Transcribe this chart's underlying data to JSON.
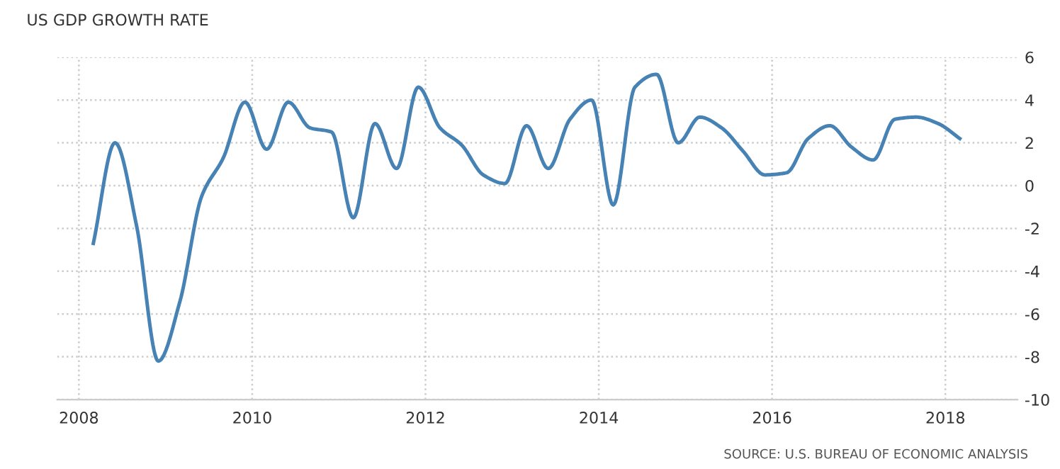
{
  "chart_data": {
    "type": "line",
    "title": "US GDP GROWTH RATE",
    "x": [
      "2008-03",
      "2008-06",
      "2008-09",
      "2008-12",
      "2009-03",
      "2009-06",
      "2009-09",
      "2009-12",
      "2010-03",
      "2010-06",
      "2010-09",
      "2010-12",
      "2011-03",
      "2011-06",
      "2011-09",
      "2011-12",
      "2012-03",
      "2012-06",
      "2012-09",
      "2012-12",
      "2013-03",
      "2013-06",
      "2013-09",
      "2013-12",
      "2014-03",
      "2014-06",
      "2014-09",
      "2014-12",
      "2015-03",
      "2015-06",
      "2015-09",
      "2015-12",
      "2016-03",
      "2016-06",
      "2016-09",
      "2016-12",
      "2017-03",
      "2017-06",
      "2017-09",
      "2017-12",
      "2018-03"
    ],
    "series": [
      {
        "color": "#4682b4",
        "values": [
          -2.7,
          2.0,
          -1.9,
          -8.2,
          -5.4,
          -0.5,
          1.3,
          3.9,
          1.7,
          3.9,
          2.7,
          2.5,
          -1.5,
          2.9,
          0.8,
          4.6,
          2.7,
          1.9,
          0.5,
          0.1,
          2.8,
          0.8,
          3.1,
          4.0,
          -0.9,
          4.6,
          5.2,
          2.0,
          3.2,
          2.7,
          1.6,
          0.5,
          0.6,
          2.2,
          2.8,
          1.8,
          1.2,
          3.1,
          3.2,
          2.9,
          2.2
        ]
      }
    ],
    "xlim": [
      "2007-10",
      "2018-11"
    ],
    "xticks": [
      {
        "value": "2008-01",
        "label": "2008"
      },
      {
        "value": "2010-01",
        "label": "2010"
      },
      {
        "value": "2012-01",
        "label": "2012"
      },
      {
        "value": "2014-01",
        "label": "2014"
      },
      {
        "value": "2016-01",
        "label": "2016"
      },
      {
        "value": "2018-01",
        "label": "2018"
      }
    ],
    "ylim": [
      -10,
      6
    ],
    "yticks": [
      -10,
      -8,
      -6,
      -4,
      -2,
      0,
      2,
      4,
      6
    ],
    "grid": true,
    "line_style": "solid",
    "marker": "none",
    "legend": false,
    "annotations": [
      "SOURCE: U.S. BUREAU OF ECONOMIC ANALYSIS"
    ]
  }
}
